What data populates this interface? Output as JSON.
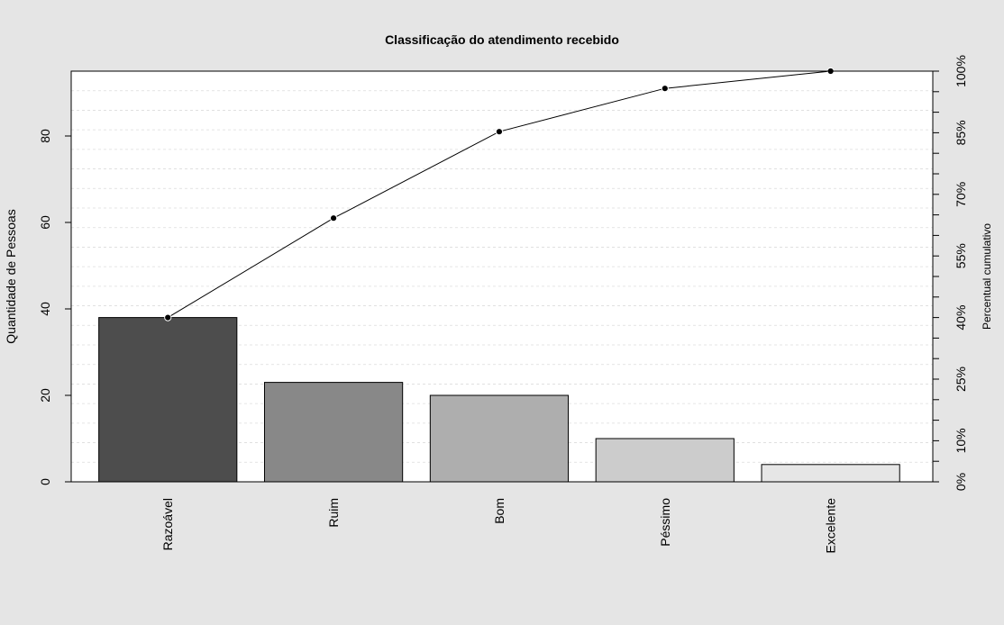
{
  "chart_data": {
    "type": "bar",
    "title": "Classificação do atendimento recebido",
    "xlabel": "",
    "ylabel": "Quantidade de Pessoas",
    "y2label": "Percentual cumulativo",
    "categories": [
      "Razoável",
      "Ruim",
      "Bom",
      "Péssimo",
      "Excelente"
    ],
    "values": [
      38,
      23,
      20,
      10,
      4
    ],
    "bar_colors": [
      "#4d4d4d",
      "#888888",
      "#aeaeae",
      "#cccccc",
      "#e6e6e6"
    ],
    "cumulative_values": [
      38,
      61,
      81,
      91,
      95
    ],
    "ylim": [
      0,
      95
    ],
    "yticks": [
      0,
      20,
      40,
      60,
      80
    ],
    "y2_tick_labels": [
      "0%",
      "10%",
      "25%",
      "40%",
      "55%",
      "70%",
      "85%",
      "100%"
    ],
    "grid": true,
    "background": "#e5e5e5",
    "plot_background": "#ffffff"
  }
}
